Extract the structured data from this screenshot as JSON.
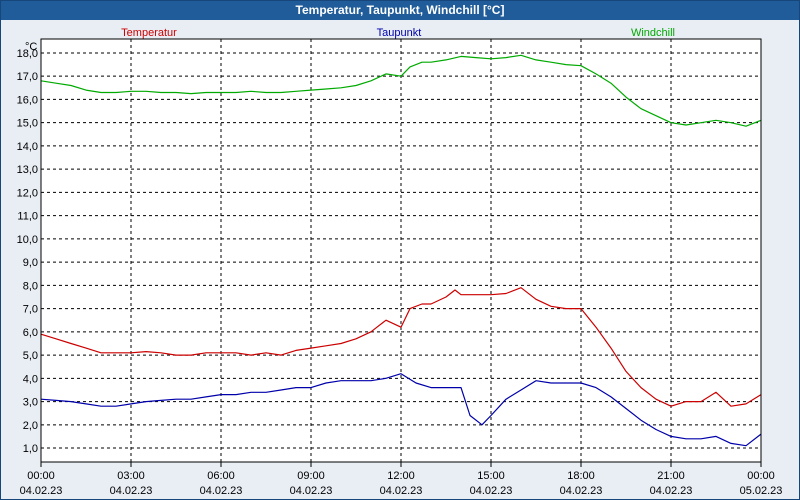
{
  "window": {
    "title": "Temperatur, Taupunkt, Windchill [°C]"
  },
  "colors": {
    "background": "#e9eef5",
    "plot_background": "#ffffff",
    "title_bar": "#1f5c99",
    "grid": "#000000",
    "temperatur": "#cc0000",
    "taupunkt": "#0000aa",
    "windchill": "#00aa00"
  },
  "chart_data": {
    "type": "line",
    "title": "Temperatur, Taupunkt, Windchill [°C]",
    "ylabel": "°C",
    "xlabel": "",
    "ylim": [
      0.4,
      18.6
    ],
    "xlim": [
      0,
      24
    ],
    "yticks": [
      1,
      2,
      3,
      4,
      5,
      6,
      7,
      8,
      9,
      10,
      11,
      12,
      13,
      14,
      15,
      16,
      17,
      18
    ],
    "ytick_labels": [
      "1,0",
      "2,0",
      "3,0",
      "4,0",
      "5,0",
      "6,0",
      "7,0",
      "8,0",
      "9,0",
      "10,0",
      "11,0",
      "12,0",
      "13,0",
      "14,0",
      "15,0",
      "16,0",
      "17,0",
      "18,0"
    ],
    "xticks": [
      {
        "x": 0,
        "time": "00:00",
        "date": "04.02.23"
      },
      {
        "x": 3,
        "time": "03:00",
        "date": "04.02.23"
      },
      {
        "x": 6,
        "time": "06:00",
        "date": "04.02.23"
      },
      {
        "x": 9,
        "time": "09:00",
        "date": "04.02.23"
      },
      {
        "x": 12,
        "time": "12:00",
        "date": "04.02.23"
      },
      {
        "x": 15,
        "time": "15:00",
        "date": "04.02.23"
      },
      {
        "x": 18,
        "time": "18:00",
        "date": "04.02.23"
      },
      {
        "x": 21,
        "time": "21:00",
        "date": "04.02.23"
      },
      {
        "x": 24,
        "time": "00:00",
        "date": "05.02.23"
      }
    ],
    "grid": true,
    "legend": "top",
    "series": [
      {
        "name": "Temperatur",
        "color": "#cc0000",
        "x": [
          0,
          0.5,
          1,
          1.5,
          2,
          2.5,
          3,
          3.5,
          4,
          4.5,
          5,
          5.5,
          6,
          6.5,
          7,
          7.5,
          8,
          8.5,
          9,
          9.5,
          10,
          10.5,
          11,
          11.5,
          12,
          12.3,
          12.7,
          13,
          13.5,
          13.8,
          14,
          14.5,
          15,
          15.5,
          16,
          16.5,
          17,
          17.5,
          18,
          18.5,
          19,
          19.5,
          20,
          20.5,
          21,
          21.5,
          22,
          22.5,
          23,
          23.5,
          24
        ],
        "values": [
          5.9,
          5.7,
          5.5,
          5.3,
          5.1,
          5.1,
          5.1,
          5.15,
          5.1,
          5.0,
          5.0,
          5.1,
          5.1,
          5.1,
          5.0,
          5.1,
          5.0,
          5.2,
          5.3,
          5.4,
          5.5,
          5.7,
          6.0,
          6.5,
          6.2,
          7.0,
          7.2,
          7.2,
          7.5,
          7.8,
          7.6,
          7.6,
          7.6,
          7.65,
          7.9,
          7.4,
          7.1,
          7.0,
          7.0,
          6.2,
          5.3,
          4.3,
          3.6,
          3.1,
          2.8,
          3.0,
          3.0,
          3.4,
          2.8,
          2.9,
          3.3
        ]
      },
      {
        "name": "Taupunkt",
        "color": "#0000aa",
        "x": [
          0,
          0.5,
          1,
          1.5,
          2,
          2.5,
          3,
          3.5,
          4,
          4.5,
          5,
          5.5,
          6,
          6.5,
          7,
          7.5,
          8,
          8.5,
          9,
          9.5,
          10,
          10.5,
          11,
          11.5,
          12,
          12.5,
          13,
          13.5,
          14,
          14.3,
          14.7,
          15,
          15.5,
          16,
          16.5,
          17,
          17.5,
          18,
          18.5,
          19,
          19.5,
          20,
          20.5,
          21,
          21.5,
          22,
          22.5,
          23,
          23.5,
          24
        ],
        "values": [
          3.1,
          3.05,
          3.0,
          2.9,
          2.8,
          2.8,
          2.9,
          3.0,
          3.05,
          3.1,
          3.1,
          3.2,
          3.3,
          3.3,
          3.4,
          3.4,
          3.5,
          3.6,
          3.6,
          3.8,
          3.9,
          3.9,
          3.9,
          4.0,
          4.2,
          3.8,
          3.6,
          3.6,
          3.6,
          2.4,
          2.0,
          2.4,
          3.1,
          3.5,
          3.9,
          3.8,
          3.8,
          3.8,
          3.6,
          3.2,
          2.7,
          2.2,
          1.8,
          1.5,
          1.4,
          1.4,
          1.5,
          1.2,
          1.1,
          1.6
        ]
      },
      {
        "name": "Windchill",
        "color": "#00aa00",
        "x": [
          0,
          0.5,
          1,
          1.5,
          2,
          2.5,
          3,
          3.5,
          4,
          4.5,
          5,
          5.5,
          6,
          6.5,
          7,
          7.5,
          8,
          8.5,
          9,
          9.5,
          10,
          10.5,
          11,
          11.5,
          12,
          12.3,
          12.7,
          13,
          13.5,
          14,
          14.5,
          15,
          15.5,
          16,
          16.5,
          17,
          17.5,
          18,
          18.5,
          19,
          19.5,
          20,
          20.5,
          21,
          21.5,
          22,
          22.5,
          23,
          23.5,
          24
        ],
        "values": [
          16.8,
          16.7,
          16.6,
          16.4,
          16.3,
          16.3,
          16.35,
          16.35,
          16.3,
          16.3,
          16.25,
          16.3,
          16.3,
          16.3,
          16.35,
          16.3,
          16.3,
          16.35,
          16.4,
          16.45,
          16.5,
          16.6,
          16.8,
          17.1,
          17.0,
          17.4,
          17.6,
          17.6,
          17.7,
          17.85,
          17.8,
          17.75,
          17.8,
          17.9,
          17.7,
          17.6,
          17.5,
          17.45,
          17.1,
          16.7,
          16.1,
          15.6,
          15.3,
          15.0,
          14.9,
          15.0,
          15.1,
          15.0,
          14.85,
          15.1
        ]
      }
    ]
  }
}
